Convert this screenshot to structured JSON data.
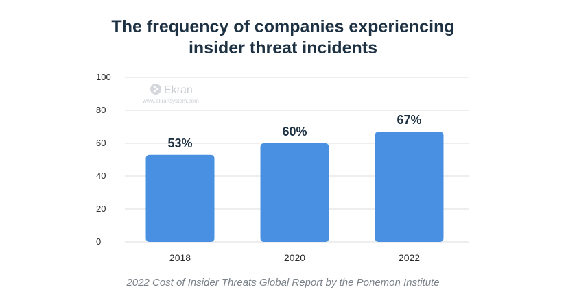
{
  "chart_data": {
    "type": "bar",
    "title_line1": "The frequency of companies experiencing",
    "title_line2": "insider threat incidents",
    "categories": [
      "2018",
      "2020",
      "2022"
    ],
    "values": [
      53,
      60,
      67
    ],
    "data_labels": [
      "53%",
      "60%",
      "67%"
    ],
    "yticks": [
      "0",
      "20",
      "40",
      "60",
      "80",
      "100"
    ],
    "ylim": [
      0,
      100
    ],
    "grid": true,
    "bar_color": "#4a90e2",
    "caption": "2022 Cost of Insider Threats Global Report by the Ponemon Institute"
  },
  "watermark": {
    "name": "Ekran",
    "url": "www.ekransystem.com",
    "icon": "ekran-logo-icon"
  }
}
